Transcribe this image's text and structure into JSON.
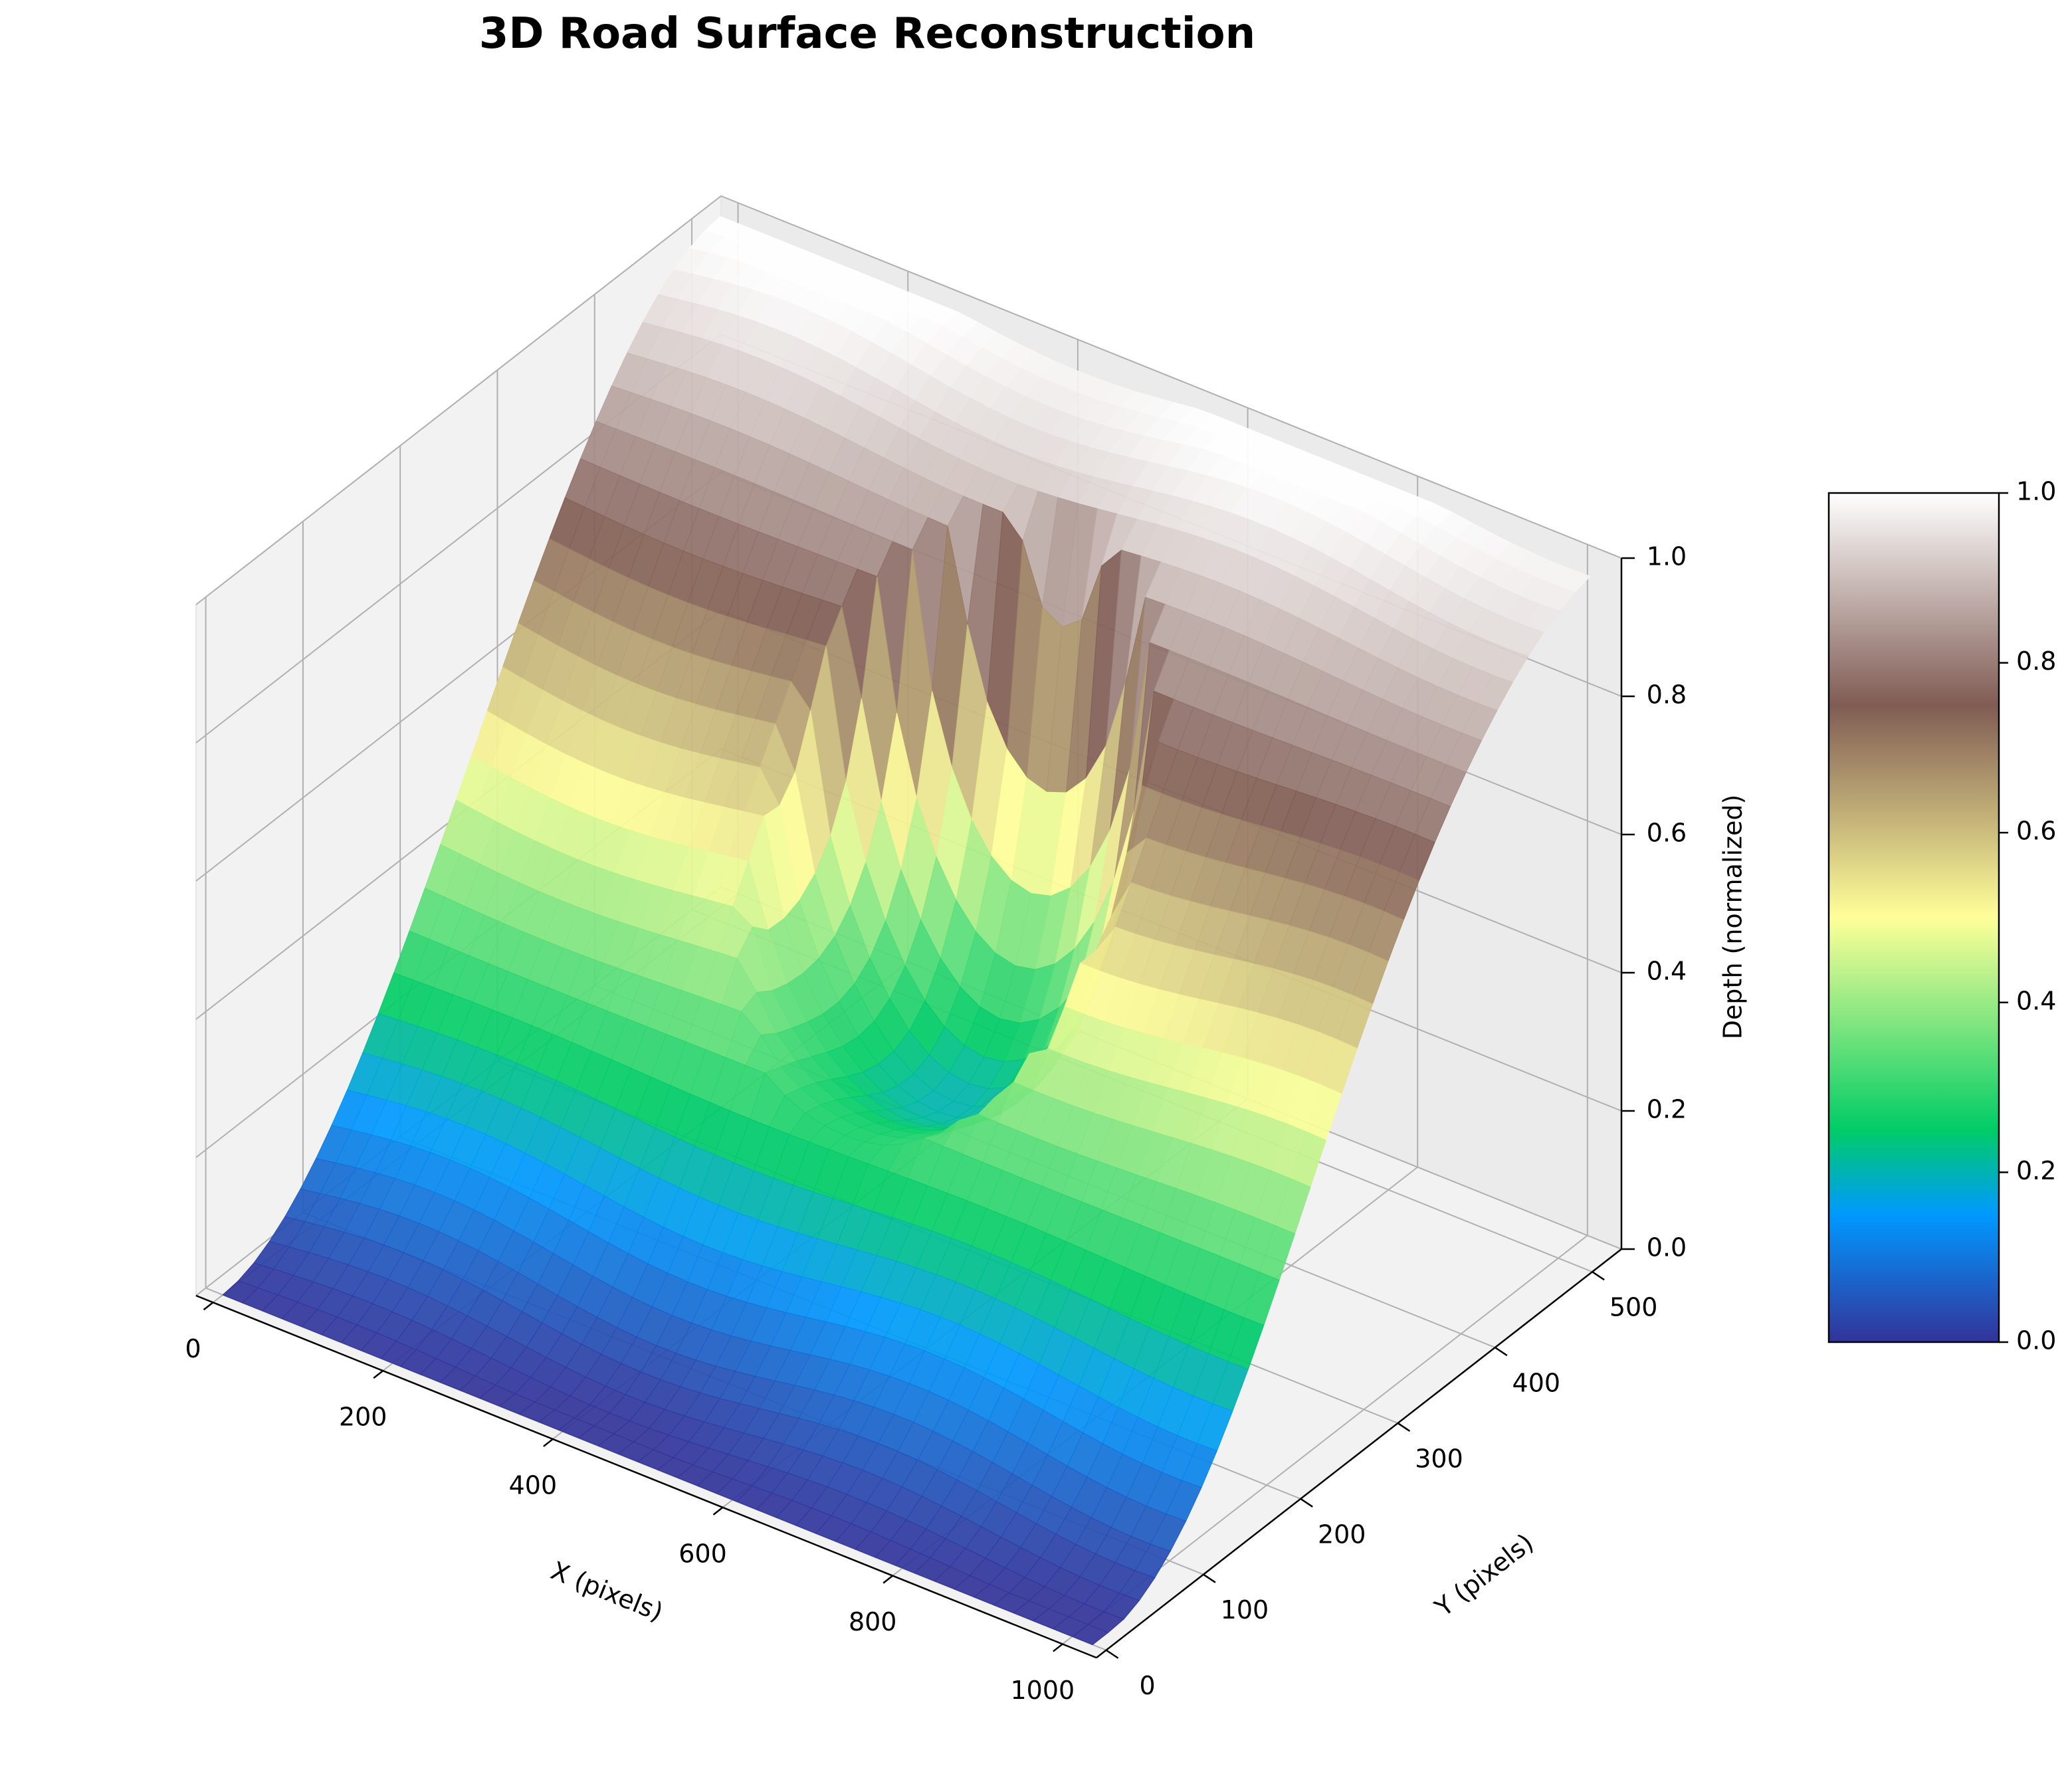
{
  "figure": {
    "title": "3D Road Surface Reconstruction"
  },
  "chart_data": {
    "type": "surface3d",
    "title": "3D Road Surface Reconstruction",
    "xlabel": "X (pixels)",
    "ylabel": "Y (pixels)",
    "zlabel": "Depth (normalized)",
    "xlim": [
      -20,
      1040
    ],
    "ylim": [
      -10,
      530
    ],
    "zlim": [
      0,
      1
    ],
    "x_ticks": [
      0,
      200,
      400,
      600,
      800,
      1000
    ],
    "y_ticks": [
      0,
      100,
      200,
      300,
      400,
      500
    ],
    "z_ticks": [
      0.0,
      0.2,
      0.4,
      0.6,
      0.8,
      1.0
    ],
    "x_tick_labels": [
      "0",
      "200",
      "400",
      "600",
      "800",
      "1000"
    ],
    "y_tick_labels": [
      "0",
      "100",
      "200",
      "300",
      "400",
      "500"
    ],
    "z_tick_labels": [
      "0.0",
      "0.2",
      "0.4",
      "0.6",
      "0.8",
      "1.0"
    ],
    "grid": true,
    "colormap": "terrain",
    "colorbar": {
      "ticks": [
        0.0,
        0.2,
        0.4,
        0.6,
        0.8,
        1.0
      ],
      "tick_labels": [
        "0.0",
        "0.2",
        "0.4",
        "0.6",
        "0.8",
        "1.0"
      ],
      "range": [
        0,
        1
      ],
      "placement": "right"
    },
    "surface": {
      "x_range": [
        0,
        1024
      ],
      "y_range": [
        0,
        512
      ],
      "base_profile": "depth increases from 0 at y=0 to 1 at y=512",
      "pothole": {
        "center_x": 512,
        "center_y": 300,
        "radius_x": 190,
        "radius_y": 120,
        "min_depth": 0.2
      }
    }
  }
}
